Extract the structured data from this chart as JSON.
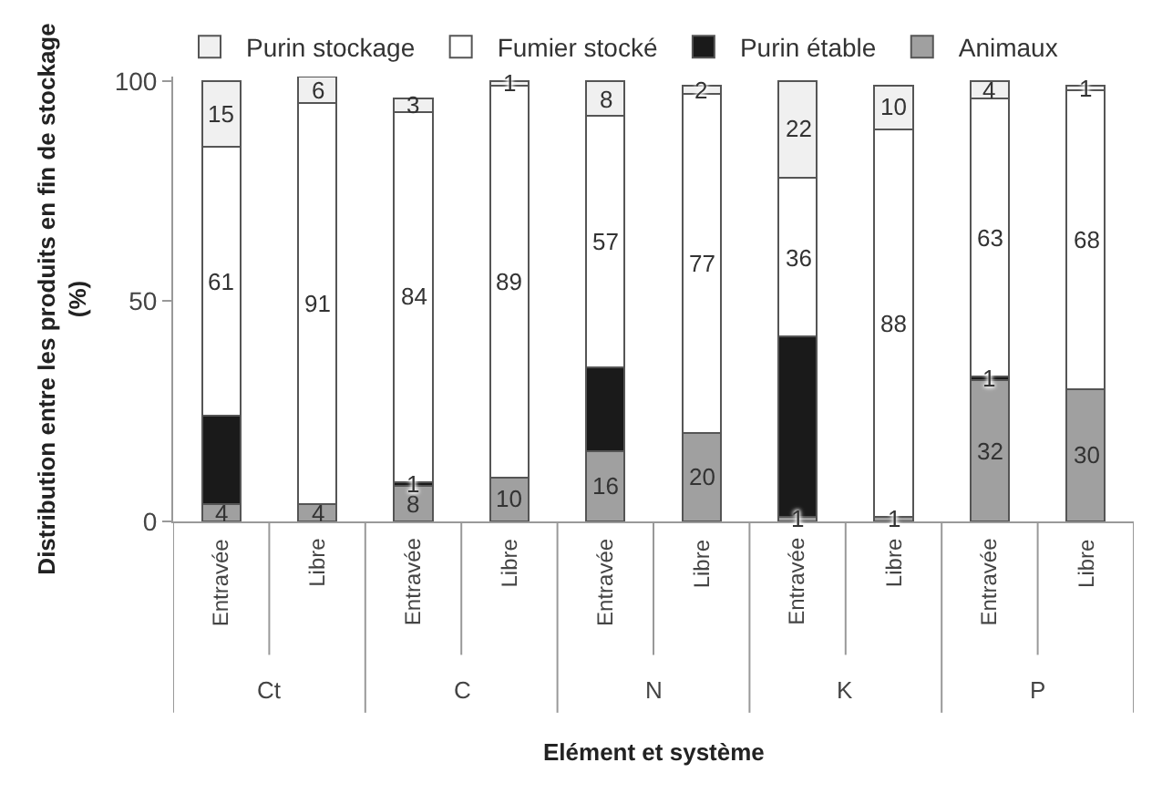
{
  "chart_data": {
    "type": "bar",
    "stacked": true,
    "xlabel": "Elément et système",
    "ylabel": "Distribution entre les produits en fin de stockage (%)",
    "categories": [
      "Entravée",
      "Libre",
      "Entravée",
      "Libre",
      "Entravée",
      "Libre",
      "Entravée",
      "Libre",
      "Entravée",
      "Libre"
    ],
    "annotations": [
      "Ct",
      "C",
      "N",
      "K",
      "P"
    ],
    "series": [
      {
        "name": "Animaux",
        "color": "#a0a0a0",
        "values": [
          4,
          4,
          8,
          10,
          16,
          20,
          1,
          1,
          32,
          30
        ],
        "value_labels": [
          "4",
          "4",
          "8",
          "10",
          "16",
          "20",
          "1",
          "1",
          "32",
          "30"
        ]
      },
      {
        "name": "Purin étable",
        "color": "#1a1a1a",
        "values": [
          20,
          0,
          1,
          0,
          19,
          0,
          41,
          0,
          1,
          0
        ],
        "value_labels": [
          null,
          null,
          "1",
          null,
          null,
          null,
          null,
          null,
          "1",
          null
        ]
      },
      {
        "name": "Fumier stocké",
        "color": "#ffffff",
        "values": [
          61,
          91,
          84,
          89,
          57,
          77,
          36,
          88,
          63,
          68
        ],
        "value_labels": [
          "61",
          "91",
          "84",
          "89",
          "57",
          "77",
          "36",
          "88",
          "63",
          "68"
        ]
      },
      {
        "name": "Purin stockage",
        "color": "#f0f0f0",
        "values": [
          15,
          6,
          3,
          1,
          8,
          2,
          22,
          10,
          4,
          1
        ],
        "value_labels": [
          "15",
          "6",
          "3",
          "1",
          "8",
          "2",
          "22",
          "10",
          "4",
          "1"
        ]
      }
    ],
    "ylim": [
      0,
      101
    ],
    "yticks": [
      0,
      50,
      100
    ],
    "grid": false,
    "legend": "top"
  }
}
